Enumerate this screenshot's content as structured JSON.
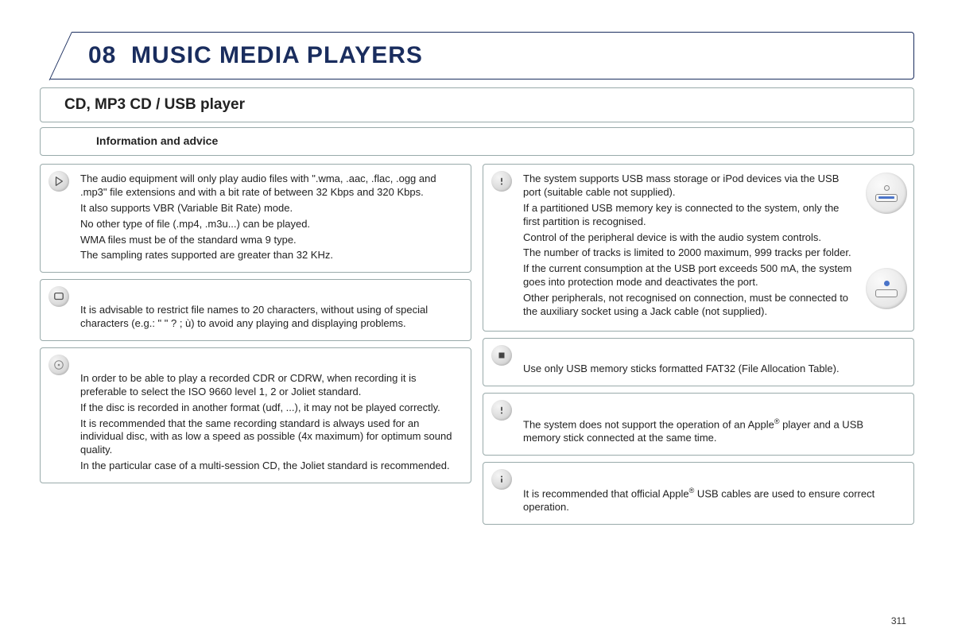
{
  "chapter_number": "08",
  "chapter_title": "MUSIC MEDIA PLAYERS",
  "subtitle": "CD, MP3 CD / USB player",
  "section_label": "Information and advice",
  "page_number": "311",
  "colors": {
    "title": "#1a2d5e",
    "border_dark": "#1a2d5e",
    "border_light": "#99aaaa",
    "text": "#222222",
    "icon_bg": "#d8d8d8"
  },
  "left_boxes": [
    {
      "icon": "play",
      "paragraphs": [
        "The audio equipment will only play audio files with \".wma, .aac, .flac, .ogg and .mp3\" file extensions and with a bit rate of between 32 Kbps and 320 Kbps.",
        "It also supports VBR (Variable Bit Rate) mode.",
        "No other type of file (.mp4, .m3u...) can be played.",
        "WMA files must be of the standard wma 9 type.",
        "The sampling rates supported are greater than 32 KHz."
      ]
    },
    {
      "icon": "screen",
      "paragraphs": [
        "",
        "It is advisable to restrict file names to 20 characters, without using of special characters (e.g.: \" \" ? ; ù) to avoid any playing and displaying problems."
      ]
    },
    {
      "icon": "disc",
      "paragraphs": [
        "",
        "In order to be able to play a recorded CDR or CDRW, when recording it is preferable to select the ISO 9660 level 1, 2 or Joliet standard.",
        "If the disc is recorded in another format (udf, ...), it may not be played correctly.",
        "It is recommended that the same recording standard is always used for an individual disc, with as low a speed as possible (4x maximum) for optimum sound quality.",
        "In the particular case of a multi-session CD, the Joliet standard is recommended."
      ]
    }
  ],
  "right_boxes": [
    {
      "icon": "exclaim",
      "ports": true,
      "paragraphs": [
        "The system supports USB mass storage or iPod devices via the USB port (suitable cable not supplied).",
        "If a partitioned USB memory key is connected to the system, only the first partition is recognised.",
        "Control of the peripheral device is with the audio system controls.",
        "The number of tracks is limited to 2000 maximum, 999 tracks per folder.",
        "If the current consumption at the USB port exceeds 500 mA, the system goes into protection mode and deactivates the port.",
        "Other peripherals, not recognised on connection, must be connected to the auxiliary socket using a Jack cable (not supplied)."
      ]
    },
    {
      "icon": "stop",
      "paragraphs": [
        "",
        "Use only USB memory sticks formatted FAT32 (File Allocation Table)."
      ]
    },
    {
      "icon": "exclaim",
      "paragraphs": [
        "",
        "The system does not support the operation of an Apple® player and a USB memory stick connected at the same time."
      ]
    },
    {
      "icon": "info",
      "paragraphs": [
        "",
        "It is recommended that official Apple® USB cables are used to ensure correct operation."
      ]
    }
  ]
}
